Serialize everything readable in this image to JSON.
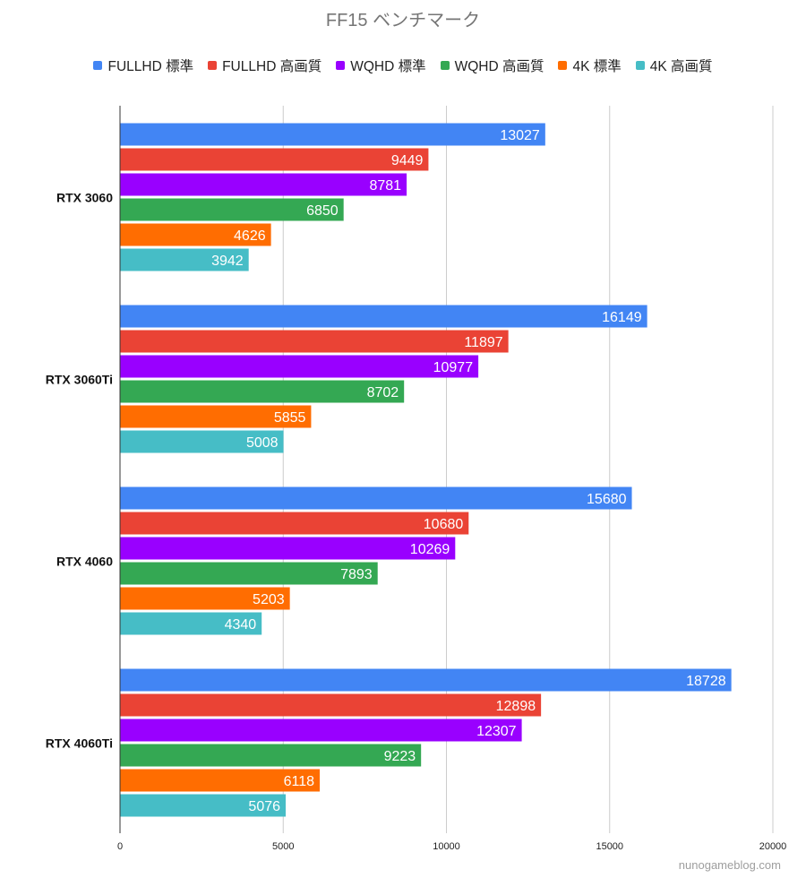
{
  "chart_data": {
    "type": "bar",
    "orientation": "horizontal",
    "title": "FF15 ベンチマーク",
    "categories": [
      "RTX 3060",
      "RTX 3060Ti",
      "RTX 4060",
      "RTX 4060Ti"
    ],
    "series": [
      {
        "name": "FULLHD 標準",
        "color": "#4285f4",
        "values": [
          13027,
          16149,
          15680,
          18728
        ]
      },
      {
        "name": "FULLHD 高画質",
        "color": "#ea4335",
        "values": [
          9449,
          11897,
          10680,
          12898
        ]
      },
      {
        "name": "WQHD 標準",
        "color": "#9900ff",
        "values": [
          8781,
          10977,
          10269,
          12307
        ]
      },
      {
        "name": "WQHD 高画質",
        "color": "#34a853",
        "values": [
          6850,
          8702,
          7893,
          9223
        ]
      },
      {
        "name": "4K 標準",
        "color": "#ff6d01",
        "values": [
          4626,
          5855,
          5203,
          6118
        ]
      },
      {
        "name": "4K 高画質",
        "color": "#46bdc6",
        "values": [
          3942,
          5008,
          4340,
          5076
        ]
      }
    ],
    "xlim": [
      0,
      20000
    ],
    "xticks": [
      "0",
      "5000",
      "10000",
      "15000",
      "20000"
    ],
    "grid": true,
    "legend": "top",
    "data_labels": true
  },
  "watermark": "nunogameblog.com"
}
